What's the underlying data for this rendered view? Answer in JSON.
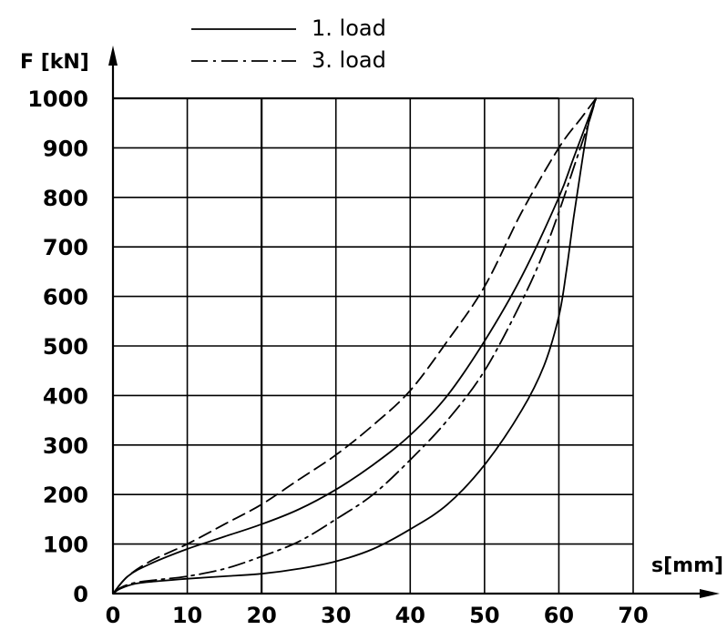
{
  "chart_data": {
    "type": "line",
    "title": "",
    "xlabel": "s[mm]",
    "ylabel": "F [kN]",
    "xlim": [
      0,
      70
    ],
    "ylim": [
      0,
      1000
    ],
    "x_ticks": [
      "0",
      "10",
      "20",
      "30",
      "40",
      "50",
      "60",
      "70"
    ],
    "y_ticks": [
      "0",
      "100",
      "200",
      "300",
      "400",
      "500",
      "600",
      "700",
      "800",
      "900",
      "1000"
    ],
    "grid": true,
    "legend_position": "top",
    "legend": [
      {
        "label": "1.  load",
        "dash": "solid"
      },
      {
        "label": "3.  load",
        "dash": "dashdot"
      }
    ],
    "series": [
      {
        "name": "1.  load",
        "dash": "solid",
        "x": [
          0,
          1,
          3,
          6,
          10,
          15,
          20,
          25,
          30,
          35,
          40,
          45,
          50,
          55,
          58,
          60,
          61,
          62,
          63,
          64,
          65
        ],
        "y": [
          0,
          10,
          20,
          25,
          30,
          35,
          40,
          50,
          65,
          90,
          130,
          180,
          260,
          370,
          460,
          560,
          650,
          760,
          860,
          950,
          1000
        ]
      },
      {
        "name": "",
        "dash": "solid",
        "x": [
          65,
          62,
          60,
          55,
          50,
          45,
          40,
          35,
          30,
          25,
          20,
          15,
          10,
          5,
          2,
          0
        ],
        "y": [
          1000,
          880,
          800,
          640,
          510,
          400,
          320,
          260,
          210,
          170,
          140,
          115,
          90,
          60,
          35,
          0
        ]
      },
      {
        "name": "3.  load",
        "dash": "dashdot",
        "x": [
          0,
          1,
          3,
          6,
          10,
          15,
          20,
          25,
          30,
          35,
          40,
          45,
          50,
          55,
          58,
          60,
          62,
          64,
          65
        ],
        "y": [
          0,
          12,
          22,
          28,
          35,
          50,
          75,
          105,
          150,
          200,
          270,
          350,
          450,
          590,
          690,
          770,
          860,
          950,
          1000
        ]
      },
      {
        "name": "",
        "dash": "dashed",
        "x": [
          65,
          63,
          60,
          55,
          50,
          45,
          40,
          35,
          30,
          25,
          20,
          15,
          10,
          5,
          2,
          0
        ],
        "y": [
          1000,
          960,
          900,
          770,
          620,
          510,
          410,
          340,
          280,
          230,
          180,
          140,
          100,
          65,
          35,
          0
        ]
      }
    ]
  }
}
